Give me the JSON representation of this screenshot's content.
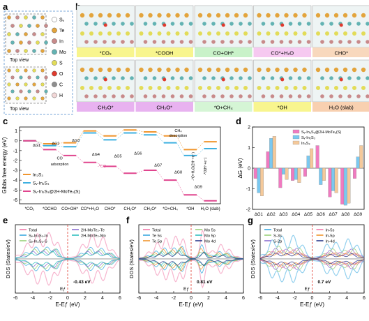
{
  "panels": {
    "a": "a",
    "b": "b",
    "c": "c",
    "d": "d",
    "e": "e",
    "f": "f",
    "g": "g"
  },
  "panel_a": {
    "top_view_1": "Top view",
    "top_view_2": "Top view",
    "legend": [
      {
        "symbol": "Sᵥ",
        "color": "#ffffff"
      },
      {
        "symbol": "Te",
        "color": "#e3a43c"
      },
      {
        "symbol": "In",
        "color": "#c88a8a"
      },
      {
        "symbol": "Mo",
        "color": "#63b3b3"
      },
      {
        "symbol": "S",
        "color": "#e2dc58"
      },
      {
        "symbol": "O",
        "color": "#e03a2e"
      },
      {
        "symbol": "C",
        "color": "#8e8e8e"
      },
      {
        "symbol": "H",
        "color": "#f2d7d7"
      }
    ]
  },
  "panel_b": {
    "tiles": [
      {
        "label": "*CO₂",
        "color": "#f8f58e"
      },
      {
        "label": "*COOH",
        "color": "#f8f58e"
      },
      {
        "label": "CO+OH*",
        "color": "#c9f2c9"
      },
      {
        "label": "CO*+H₂O",
        "color": "#f6c9f0"
      },
      {
        "label": "CHO*",
        "color": "#f8d8bd"
      },
      {
        "label": "CH₂O*",
        "color": "#e8b2f0"
      },
      {
        "label": "CH₃O*",
        "color": "#e8b2f0"
      },
      {
        "label": "*O+CH₄",
        "color": "#d5f5d5"
      },
      {
        "label": "*OH",
        "color": "#f8f58e"
      },
      {
        "label": "H₂O (slab)",
        "color": "#f8d0b0"
      }
    ]
  },
  "chart_c": {
    "ylabel": "Gibbs free energy (eV)",
    "yticks": [
      "1",
      "0",
      "-1",
      "-2",
      "-3",
      "-4",
      "-5",
      "-6"
    ],
    "ylim": [
      -6.4,
      1.4
    ],
    "xlabels": [
      "*CO₂",
      "*OCHO",
      "CO+OH*",
      "CO*+H₂O",
      "CHO*",
      "CH₂O*",
      "CH₃O*",
      "*O+CH₄",
      "*OH",
      "H₂O (slab)"
    ],
    "series": [
      {
        "name": "In₂S₃",
        "color": "#f0962e",
        "values": [
          0,
          -0.3,
          -0.2,
          1.0,
          0.5,
          1.1,
          0.9,
          0.5,
          -0.9,
          -0.1
        ]
      },
      {
        "name": "Sᵥ-In₂S₃",
        "color": "#3db0e0",
        "values": [
          0,
          -0.5,
          -0.6,
          0.8,
          0.1,
          0.8,
          0.6,
          -0.2,
          -1.5,
          -0.8
        ]
      },
      {
        "name": "Sᵥ-In₂S₃@2H-MoTe₂(S)",
        "color": "#e0458e",
        "values": [
          0,
          -0.9,
          -1.5,
          -2.2,
          -2.6,
          -3.3,
          -3.0,
          -4.0,
          -5.5,
          -6.1
        ]
      }
    ],
    "annotations": {
      "g1": "ΔG1",
      "g2": "ΔG2",
      "g3": "ΔG3",
      "g4": "ΔG4",
      "g5": "ΔG5",
      "g6": "ΔG6",
      "g7": "ΔG7",
      "g8": "ΔG8",
      "g9": "ΔG9",
      "co_adsorption_1": "CO",
      "co_adsorption_2": "adsorption",
      "ch4_desorption_1": "CH₄",
      "ch4_desorption_2": "desorption",
      "minus_co": "-*CO",
      "vert_1": "-*O+H₂O(2H⁺+e⁻)",
      "vert_2": "-*O(H⁺+e⁻)"
    }
  },
  "chart_d": {
    "ylabel": "ΔG (eV)",
    "categories": [
      "ΔG1",
      "ΔG2",
      "ΔG3",
      "ΔG4",
      "ΔG5",
      "ΔG6",
      "ΔG7",
      "ΔG8",
      "ΔG9"
    ],
    "ylim": [
      -2,
      2
    ],
    "yticks": [
      "2",
      "1",
      "0",
      "-1",
      "-2"
    ],
    "series": [
      {
        "name": "Sᵥ-In₂S₃@2H-MoTe₂(S)",
        "color": "#f07ac0",
        "values": [
          -0.5,
          0.8,
          -0.95,
          -0.6,
          -0.4,
          1.1,
          -1.4,
          -1.75,
          -0.5
        ]
      },
      {
        "name": "Sᵥ-In₂S₃",
        "color": "#7ac8f0",
        "values": [
          -1.2,
          1.45,
          -0.3,
          -0.55,
          0.6,
          -0.8,
          -1.1,
          -1.8,
          0.55
        ]
      },
      {
        "name": "In₂S₃",
        "color": "#f5c99a",
        "values": [
          -1.35,
          1.55,
          -0.55,
          -0.7,
          0.95,
          -0.6,
          -1.2,
          -1.7,
          1.1
        ]
      }
    ]
  },
  "chart_e": {
    "ylabel": "DOS (States/eV)",
    "xlabel": "E-Eƒ (eV)",
    "xticks": [
      "-6",
      "-4",
      "-2",
      "0",
      "2",
      "4",
      "6"
    ],
    "ef_label": "Eƒ",
    "gap_label": "-0.43 eV",
    "legend": [
      {
        "name": "Total",
        "color": "#f07aa8"
      },
      {
        "name": "Sᵥ-In₂S₃-In",
        "color": "#3aa9e0"
      },
      {
        "name": "Sᵥ-In₂S₃-S",
        "color": "#9ad07a"
      },
      {
        "name": "2H-MoTe₂-Te",
        "color": "#8c6fd0"
      },
      {
        "name": "2H-MoTe₂-Mo",
        "color": "#30c0c0"
      }
    ]
  },
  "chart_f": {
    "ylabel": "DOS (States/eV)",
    "xlabel": "E-Eƒ (eV)",
    "xticks": [
      "-6",
      "-4",
      "-2",
      "0",
      "2",
      "4",
      "6"
    ],
    "ef_label": "Eƒ",
    "gap_label": "0.81 eV",
    "legend": [
      {
        "name": "Total",
        "color": "#f07aa8"
      },
      {
        "name": "Te 5s",
        "color": "#3aa9e0"
      },
      {
        "name": "Te 5p",
        "color": "#f0962e"
      },
      {
        "name": "Mo 5s",
        "color": "#9ad07a"
      },
      {
        "name": "Mo 5p",
        "color": "#30c0c0"
      },
      {
        "name": "Mo 4d",
        "color": "#2b3a8c"
      }
    ]
  },
  "chart_g": {
    "ylabel": "DOS (States/eV)",
    "xlabel": "E-Eƒ (eV)",
    "xticks": [
      "-6",
      "-4",
      "-2",
      "0",
      "2",
      "4",
      "6"
    ],
    "ef_label": "Eƒ",
    "gap_label": "0.7 eV",
    "legend": [
      {
        "name": "Total",
        "color": "#3aa9e0"
      },
      {
        "name": "S-3s",
        "color": "#9ad07a"
      },
      {
        "name": "S-2p",
        "color": "#8c6fd0"
      },
      {
        "name": "In-5s",
        "color": "#f07aa8"
      },
      {
        "name": "In-5p",
        "color": "#f0962e"
      },
      {
        "name": "In-4d",
        "color": "#2b3a8c"
      }
    ]
  }
}
